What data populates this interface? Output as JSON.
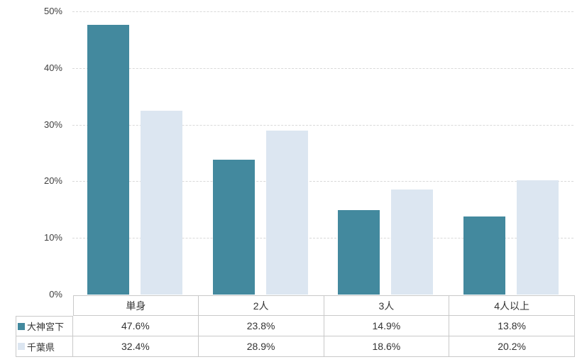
{
  "chart_data": {
    "type": "bar",
    "categories": [
      "単身",
      "2人",
      "3人",
      "4人以上"
    ],
    "series": [
      {
        "name": "大神宮下",
        "color": "#43899E",
        "values": [
          47.6,
          23.8,
          14.9,
          13.8
        ]
      },
      {
        "name": "千葉県",
        "color": "#DCE6F1",
        "values": [
          32.4,
          28.9,
          18.6,
          20.2
        ]
      }
    ],
    "ylim": [
      0,
      50
    ],
    "ytick_step": 10,
    "yticks": [
      "0%",
      "10%",
      "20%",
      "30%",
      "40%",
      "50%"
    ],
    "grid": "horizontal-dashed",
    "legend_position": "data-table-left"
  },
  "table": {
    "columns": [
      "単身",
      "2人",
      "3人",
      "4人以上"
    ],
    "row_labels": [
      "大神宮下",
      "千葉県"
    ],
    "rows": [
      [
        "47.6%",
        "23.8%",
        "14.9%",
        "13.8%"
      ],
      [
        "32.4%",
        "28.9%",
        "18.6%",
        "20.2%"
      ]
    ]
  },
  "colors": {
    "gridline": "#D9D9D9",
    "table_border": "#C9C9C9",
    "tick_text": "#404040",
    "table_text": "#333333"
  }
}
